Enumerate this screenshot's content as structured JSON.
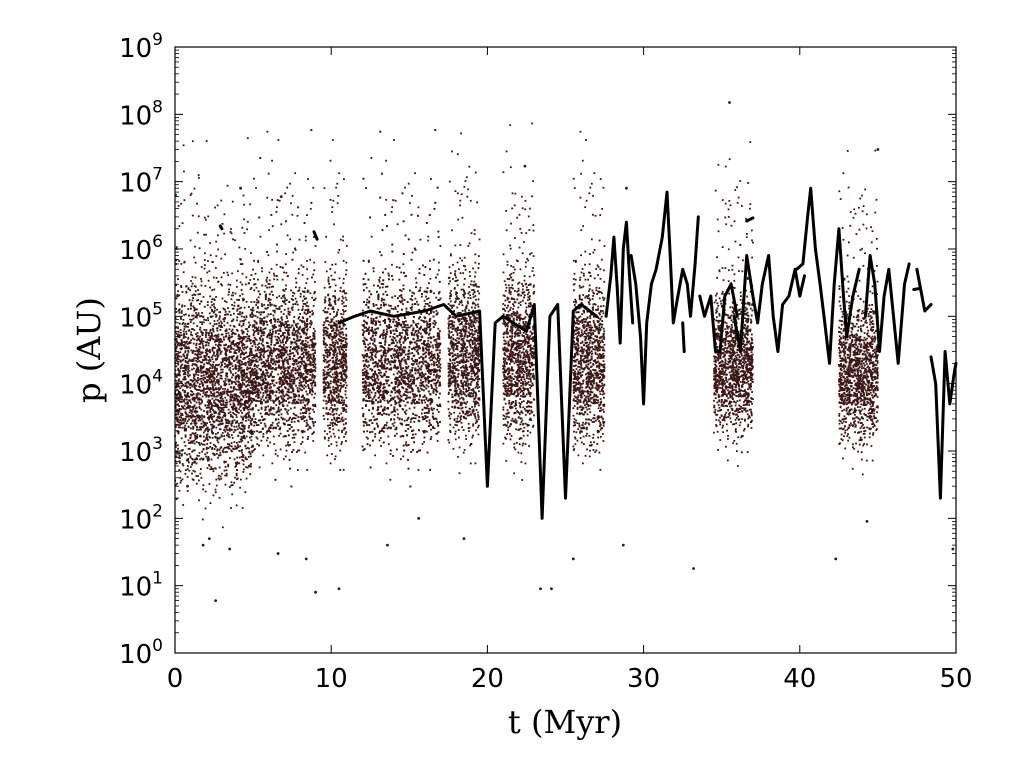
{
  "chart_data": {
    "type": "scatter",
    "title": "",
    "xlabel": "t (Myr)",
    "ylabel": "p (AU)",
    "xlim": [
      0,
      50
    ],
    "ylim": [
      1,
      1000000000
    ],
    "yscale": "log",
    "grid": false,
    "legend": "none",
    "marker_color": "#3a1410",
    "line_color": "#000000",
    "x_ticks": [
      {
        "value": 0,
        "label": "0"
      },
      {
        "value": 10,
        "label": "10"
      },
      {
        "value": 20,
        "label": "20"
      },
      {
        "value": 30,
        "label": "30"
      },
      {
        "value": 40,
        "label": "40"
      },
      {
        "value": 50,
        "label": "50"
      }
    ],
    "y_ticks": [
      {
        "value": 1,
        "base": "10",
        "exp": "0"
      },
      {
        "value": 10,
        "base": "10",
        "exp": "1"
      },
      {
        "value": 100,
        "base": "10",
        "exp": "2"
      },
      {
        "value": 1000,
        "base": "10",
        "exp": "3"
      },
      {
        "value": 10000,
        "base": "10",
        "exp": "4"
      },
      {
        "value": 100000,
        "base": "10",
        "exp": "5"
      },
      {
        "value": 1000000,
        "base": "10",
        "exp": "6"
      },
      {
        "value": 10000000,
        "base": "10",
        "exp": "7"
      },
      {
        "value": 100000000,
        "base": "10",
        "exp": "8"
      },
      {
        "value": 1000000000,
        "base": "10",
        "exp": "9"
      }
    ],
    "dense_clusters": [
      {
        "t_range": [
          0,
          5
        ],
        "p_center": 10000,
        "log_spread": 0.7
      },
      {
        "t_range": [
          5,
          9
        ],
        "p_center": 20000,
        "log_spread": 0.6
      },
      {
        "t_range": [
          9.5,
          11
        ],
        "p_center": 20000,
        "log_spread": 0.6
      },
      {
        "t_range": [
          12,
          17
        ],
        "p_center": 20000,
        "log_spread": 0.6
      },
      {
        "t_range": [
          17.5,
          19.5
        ],
        "p_center": 25000,
        "log_spread": 0.6
      },
      {
        "t_range": [
          21,
          23
        ],
        "p_center": 25000,
        "log_spread": 0.6
      },
      {
        "t_range": [
          25.5,
          27.5
        ],
        "p_center": 20000,
        "log_spread": 0.6
      },
      {
        "t_range": [
          34.5,
          37
        ],
        "p_center": 20000,
        "log_spread": 0.5
      },
      {
        "t_range": [
          42.5,
          45
        ],
        "p_center": 15000,
        "log_spread": 0.5
      }
    ],
    "outlier_points": [
      {
        "t": 0.8,
        "p": 300
      },
      {
        "t": 1.8,
        "p": 40
      },
      {
        "t": 2.2,
        "p": 50
      },
      {
        "t": 2.6,
        "p": 6
      },
      {
        "t": 3.5,
        "p": 35
      },
      {
        "t": 4.2,
        "p": 8000000
      },
      {
        "t": 6.6,
        "p": 30
      },
      {
        "t": 6.8,
        "p": 6000000
      },
      {
        "t": 8.4,
        "p": 25
      },
      {
        "t": 9,
        "p": 8
      },
      {
        "t": 10.5,
        "p": 9
      },
      {
        "t": 13.6,
        "p": 40
      },
      {
        "t": 15.6,
        "p": 100
      },
      {
        "t": 18.5,
        "p": 50
      },
      {
        "t": 22.4,
        "p": 17000000
      },
      {
        "t": 23.4,
        "p": 9
      },
      {
        "t": 24.1,
        "p": 9
      },
      {
        "t": 25.5,
        "p": 25
      },
      {
        "t": 28.7,
        "p": 40
      },
      {
        "t": 28.9,
        "p": 8000000
      },
      {
        "t": 33.2,
        "p": 18
      },
      {
        "t": 35.5,
        "p": 150000000
      },
      {
        "t": 42.3,
        "p": 25
      },
      {
        "t": 44.3,
        "p": 90
      },
      {
        "t": 45,
        "p": 30000000
      },
      {
        "t": 49.8,
        "p": 35
      }
    ],
    "line_series": [
      {
        "name": "",
        "points": [
          [
            2.9,
            2200000
          ],
          [
            3.0,
            2000000
          ]
        ]
      },
      {
        "name": "",
        "points": [
          [
            8.9,
            1800000
          ],
          [
            9.1,
            1400000
          ]
        ]
      },
      {
        "name": "",
        "points": [
          [
            27.6,
            100000
          ],
          [
            27.9,
            400000
          ],
          [
            28.1,
            1500000
          ],
          [
            28.3,
            300000
          ],
          [
            28.5,
            40000
          ],
          [
            28.7,
            1000000
          ],
          [
            28.9,
            2500000
          ],
          [
            29.1,
            400000
          ],
          [
            29.3,
            80000
          ]
        ]
      },
      {
        "name": "",
        "points": [
          [
            29.2,
            800000
          ],
          [
            29.5,
            300000
          ],
          [
            29.8,
            50000
          ],
          [
            30.0,
            5000
          ],
          [
            30.2,
            80000
          ],
          [
            30.5,
            300000
          ],
          [
            30.8,
            500000
          ],
          [
            31.2,
            1500000
          ],
          [
            31.5,
            7000000
          ],
          [
            31.7,
            800000
          ],
          [
            31.9,
            80000
          ],
          [
            32.1,
            150000
          ],
          [
            32.5,
            500000
          ],
          [
            32.8,
            300000
          ],
          [
            33.0,
            100000
          ],
          [
            33.3,
            600000
          ],
          [
            33.5,
            3000000
          ]
        ]
      },
      {
        "name": "",
        "points": [
          [
            32.5,
            80000
          ],
          [
            32.6,
            30000
          ]
        ]
      },
      {
        "name": "",
        "points": [
          [
            33.6,
            200000
          ],
          [
            33.9,
            100000
          ],
          [
            34.3,
            200000
          ],
          [
            34.6,
            30000
          ],
          [
            34.9,
            30000
          ],
          [
            35.2,
            200000
          ],
          [
            35.6,
            300000
          ],
          [
            36.0,
            100000
          ]
        ]
      },
      {
        "name": "",
        "points": [
          [
            36.6,
            2600000
          ],
          [
            37.0,
            2900000
          ]
        ]
      },
      {
        "name": "",
        "points": [
          [
            35.8,
            100000
          ],
          [
            36.2,
            30000
          ],
          [
            36.6,
            800000
          ],
          [
            37.0,
            200000
          ],
          [
            37.3,
            80000
          ],
          [
            37.6,
            300000
          ],
          [
            38.0,
            800000
          ],
          [
            38.3,
            100000
          ],
          [
            38.6,
            30000
          ],
          [
            38.9,
            150000
          ],
          [
            39.3,
            200000
          ],
          [
            39.7,
            500000
          ],
          [
            40.0,
            200000
          ],
          [
            40.3,
            400000
          ]
        ]
      },
      {
        "name": "",
        "points": [
          [
            39.8,
            500000
          ],
          [
            40.2,
            600000
          ],
          [
            40.5,
            3000000
          ],
          [
            40.7,
            8000000
          ],
          [
            41.0,
            1000000
          ],
          [
            41.3,
            300000
          ],
          [
            41.6,
            80000
          ],
          [
            41.9,
            20000
          ],
          [
            42.2,
            300000
          ],
          [
            42.5,
            2000000
          ],
          [
            42.8,
            200000
          ],
          [
            43.0,
            50000
          ],
          [
            43.4,
            200000
          ],
          [
            43.8,
            500000
          ]
        ]
      },
      {
        "name": "",
        "points": [
          [
            44.2,
            100000
          ],
          [
            44.5,
            800000
          ],
          [
            44.8,
            300000
          ],
          [
            45.1,
            30000
          ],
          [
            45.4,
            200000
          ],
          [
            45.7,
            500000
          ],
          [
            46.0,
            100000
          ],
          [
            46.3,
            20000
          ],
          [
            46.7,
            300000
          ],
          [
            47.0,
            600000
          ]
        ]
      },
      {
        "name": "",
        "points": [
          [
            47.3,
            250000
          ],
          [
            47.7,
            260000
          ]
        ]
      },
      {
        "name": "",
        "points": [
          [
            47.5,
            500000
          ],
          [
            48.0,
            120000
          ],
          [
            48.4,
            150000
          ]
        ]
      },
      {
        "name": "",
        "points": [
          [
            48.4,
            25000
          ],
          [
            48.7,
            10000
          ],
          [
            49.0,
            200
          ],
          [
            49.3,
            30000
          ],
          [
            49.6,
            5000
          ],
          [
            49.9,
            15000
          ],
          [
            50,
            20000
          ]
        ]
      },
      {
        "name": "",
        "points": [
          [
            10.5,
            80000
          ],
          [
            11.5,
            100000
          ],
          [
            12.5,
            120000
          ],
          [
            14.0,
            100000
          ],
          [
            16.0,
            120000
          ],
          [
            17.2,
            150000
          ],
          [
            18.0,
            100000
          ],
          [
            19.5,
            120000
          ],
          [
            20.0,
            300
          ],
          [
            20.5,
            80000
          ],
          [
            21.0,
            100000
          ],
          [
            22.5,
            60000
          ],
          [
            23.0,
            150000
          ],
          [
            23.5,
            100
          ],
          [
            24.0,
            100000
          ],
          [
            24.5,
            150000
          ],
          [
            25.0,
            200
          ],
          [
            25.5,
            120000
          ],
          [
            26.0,
            150000
          ],
          [
            27.0,
            100000
          ]
        ]
      }
    ]
  }
}
